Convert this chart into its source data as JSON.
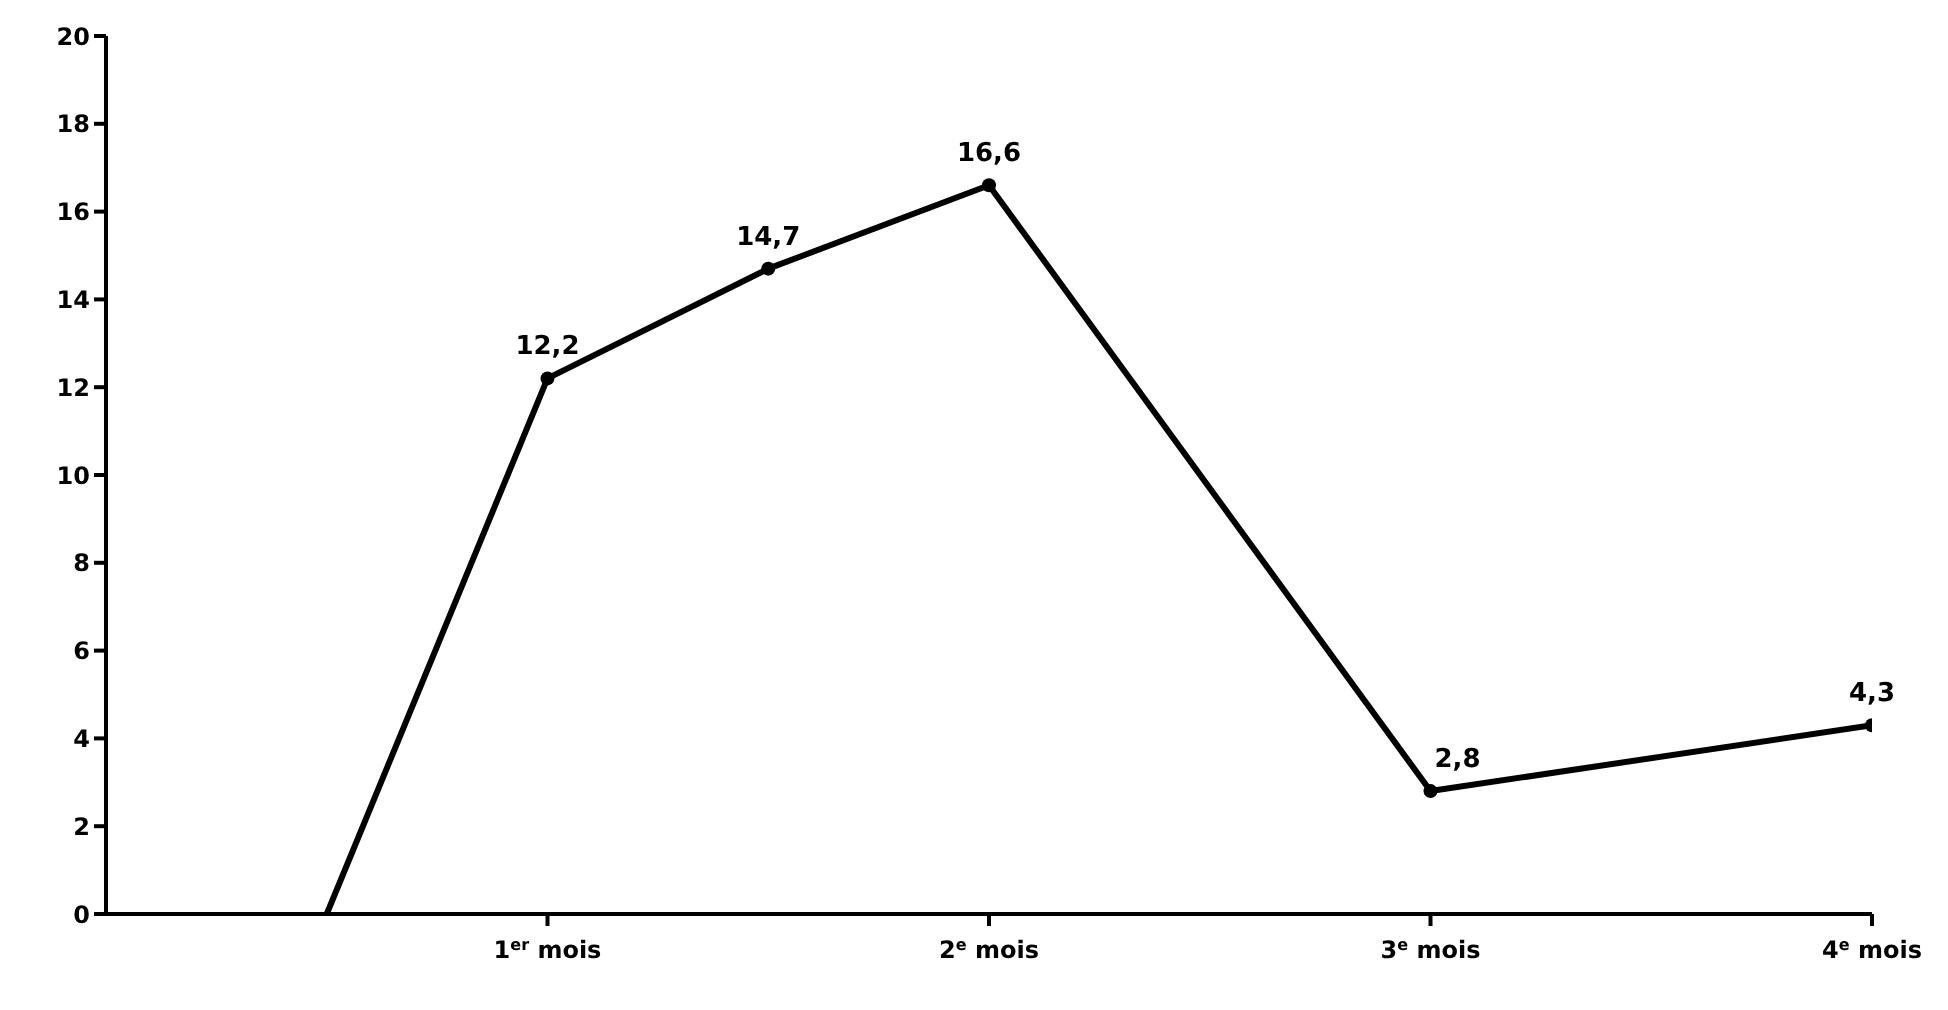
{
  "chart_data": {
    "type": "line",
    "x": [
      0.5,
      1,
      1.5,
      2,
      3,
      4
    ],
    "values": [
      0,
      12.2,
      14.7,
      16.6,
      2.8,
      4.3
    ],
    "value_labels": [
      null,
      "12,2",
      "14,7",
      "16,6",
      "2,8",
      "4,3"
    ],
    "color": "#000000",
    "marker": "circle",
    "line_style": "solid",
    "grid": false,
    "legend": false,
    "xlim": [
      0,
      4
    ],
    "xticks": [
      {
        "value": 1,
        "label": "1$^{er}$ mois"
      },
      {
        "value": 2,
        "label": "2$^{e}$ mois"
      },
      {
        "value": 3,
        "label": "3$^{e}$ mois"
      },
      {
        "value": 4,
        "label": "4$^{e}$ mois"
      }
    ],
    "ylim": [
      0,
      20
    ],
    "yticks": [
      0,
      2,
      4,
      6,
      8,
      10,
      12,
      14,
      16,
      18,
      20
    ]
  }
}
